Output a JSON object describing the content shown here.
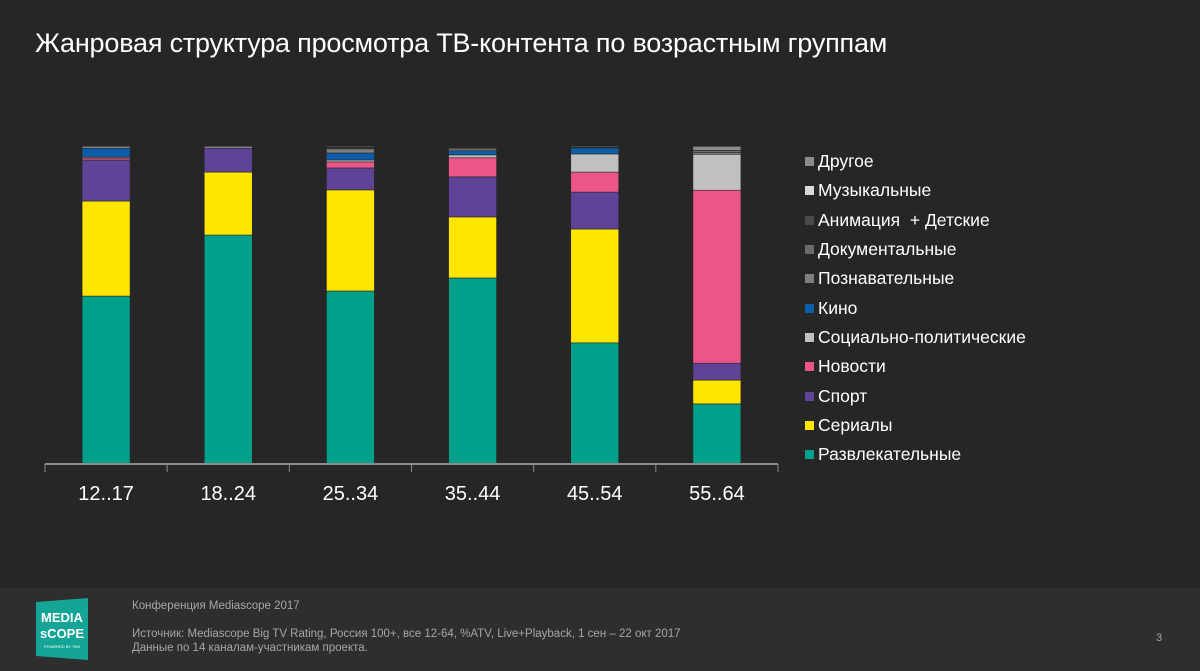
{
  "slide": {
    "title": "Жанровая структура просмотра ТВ-контента по возрастным группам",
    "footer": {
      "conference": "Конференция Mediascope 2017",
      "source_line1": "Источник: Mediascope Big TV Rating, Россия 100+, все 12-64, %ATV, Live+Playback, 1 сен – 22 окт 2017",
      "source_line2": "Данные по 14 каналам-участникам проекта.",
      "page_number": "3"
    },
    "logo": {
      "line1": "MEDIA",
      "line2": "sCOPE",
      "tagline": "POWERED BY TNS",
      "color": "#14a596"
    }
  },
  "chart_data": {
    "type": "bar",
    "stacked": true,
    "title": "Жанровая структура просмотра ТВ-контента по возрастным группам",
    "xlabel": "",
    "ylabel": "",
    "ylim": [
      0,
      100
    ],
    "grid": false,
    "legend_position": "right",
    "categories": [
      "12..17",
      "18..24",
      "25..34",
      "35..44",
      "45..54",
      "55..64"
    ],
    "series": [
      {
        "name": "Развлекательные",
        "color": "#00a08a",
        "values": [
          52.8,
          72.0,
          54.4,
          58.5,
          38.1,
          18.9
        ]
      },
      {
        "name": "Сериалы",
        "color": "#ffe600",
        "values": [
          29.9,
          19.8,
          31.8,
          19.2,
          35.8,
          7.5
        ]
      },
      {
        "name": "Спорт",
        "color": "#5e4396",
        "values": [
          12.9,
          7.5,
          6.9,
          12.6,
          11.6,
          5.3
        ]
      },
      {
        "name": "Новости",
        "color": "#ec558a",
        "values": [
          0.6,
          0.0,
          1.9,
          6.0,
          6.3,
          54.4
        ]
      },
      {
        "name": "Социально-политические",
        "color": "#c0c0c0",
        "values": [
          0.3,
          0.0,
          0.6,
          0.9,
          5.7,
          11.3
        ]
      },
      {
        "name": "Кино",
        "color": "#0d5da8",
        "values": [
          2.8,
          0.0,
          2.2,
          1.3,
          1.9,
          0.0
        ]
      },
      {
        "name": "Познавательные",
        "color": "#7f7f7f",
        "values": [
          0.0,
          0.0,
          1.3,
          0.6,
          0.0,
          0.6
        ]
      },
      {
        "name": "Документальные",
        "color": "#6b6b6b",
        "values": [
          0.0,
          0.0,
          0.3,
          0.0,
          0.0,
          0.6
        ]
      },
      {
        "name": "Анимация  + Детские",
        "color": "#4a4a4a",
        "values": [
          0.0,
          0.0,
          0.3,
          0.0,
          0.3,
          0.0
        ]
      },
      {
        "name": "Музыкальные",
        "color": "#d9d9d9",
        "values": [
          0.0,
          0.0,
          0.0,
          0.0,
          0.0,
          0.0
        ]
      },
      {
        "name": "Другое",
        "color": "#8c8c8c",
        "values": [
          0.6,
          0.6,
          0.3,
          0.3,
          0.3,
          1.3
        ]
      }
    ],
    "legend_order": [
      "Другое",
      "Музыкальные",
      "Анимация  + Детские",
      "Документальные",
      "Познавательные",
      "Кино",
      "Социально-политические",
      "Новости",
      "Спорт",
      "Сериалы",
      "Развлекательные"
    ]
  }
}
